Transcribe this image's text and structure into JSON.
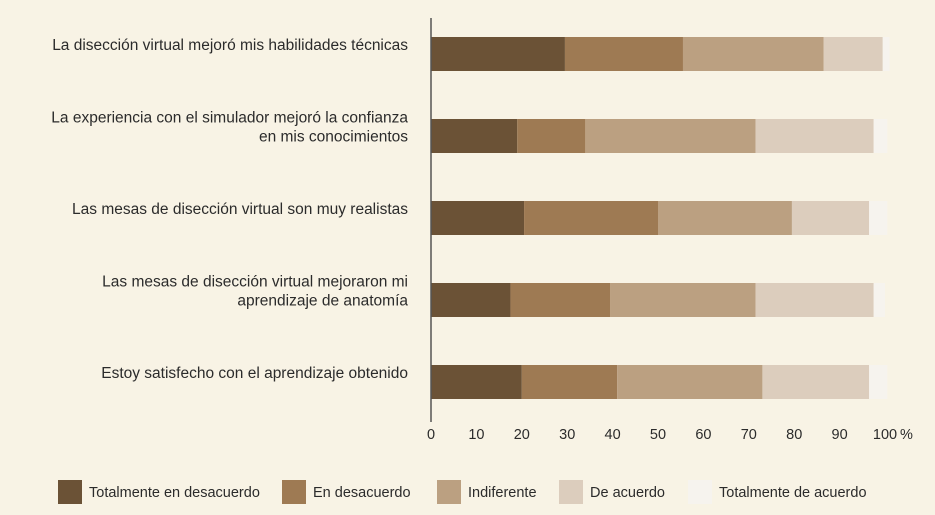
{
  "chart_data": {
    "type": "bar",
    "orientation": "horizontal",
    "stacked": true,
    "categories": [
      [
        "La disección virtual mejoró mis habilidades técnicas"
      ],
      [
        "La experiencia con el simulador mejoró la confianza",
        "en mis conocimientos"
      ],
      [
        "Las mesas de disección virtual son muy realistas"
      ],
      [
        "Las mesas de disección virtual mejoraron mi",
        "aprendizaje de anatomía"
      ],
      [
        "Estoy satisfecho con el aprendizaje obtenido"
      ]
    ],
    "series": [
      {
        "name": "Totalmente en desacuerdo",
        "color": "#6b5236",
        "values": [
          29.5,
          19.0,
          20.5,
          17.5,
          20.0
        ]
      },
      {
        "name": "En desacuerdo",
        "color": "#9e7a53",
        "values": [
          26.0,
          15.0,
          29.5,
          22.0,
          21.0
        ]
      },
      {
        "name": "Indiferente",
        "color": "#bba081",
        "values": [
          31.0,
          37.5,
          29.5,
          32.0,
          32.0
        ]
      },
      {
        "name": "De acuerdo",
        "color": "#dccdbd",
        "values": [
          13.0,
          26.0,
          17.0,
          26.0,
          23.5
        ]
      },
      {
        "name": "Totalmente de acuerdo",
        "color": "#f6f3ee",
        "values": [
          1.5,
          3.0,
          4.0,
          2.5,
          4.0
        ]
      }
    ],
    "x_ticks": [
      "0",
      "10",
      "20",
      "30",
      "40",
      "50",
      "60",
      "70",
      "80",
      "90",
      "100"
    ],
    "xlim": [
      0,
      100
    ],
    "x_unit": "%",
    "axis_color": "#555555",
    "legend_position": "bottom"
  }
}
